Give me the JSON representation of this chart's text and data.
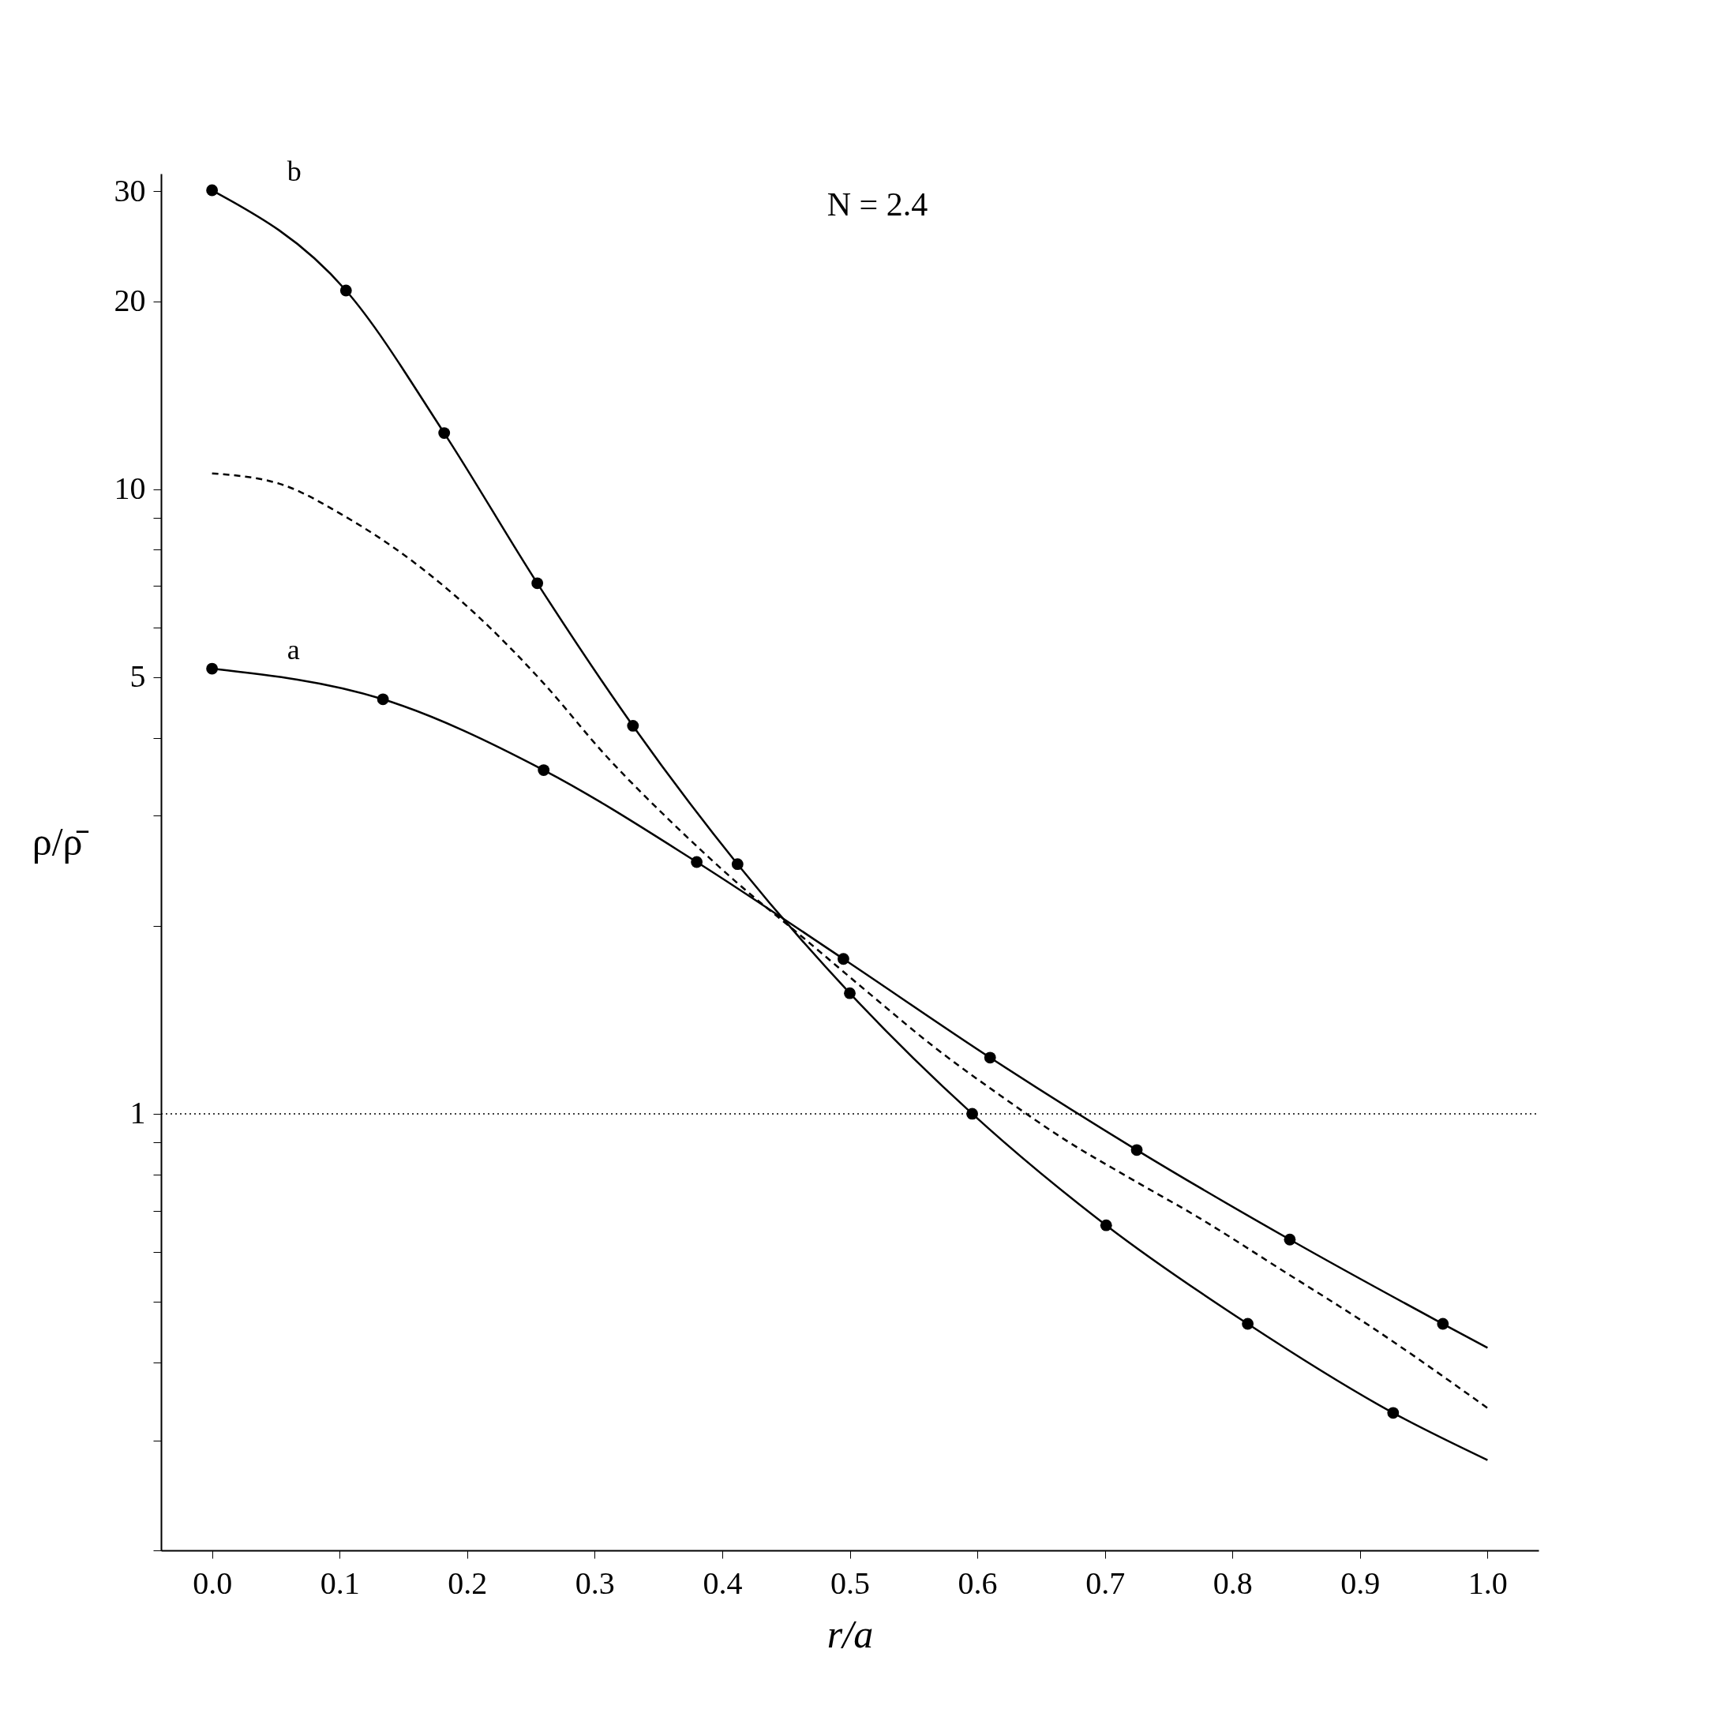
{
  "chart_data": {
    "type": "line",
    "xlabel": "r/a",
    "ylabel": "ρ/ρ̄",
    "log": "y",
    "grid": false,
    "xlim": [
      -0.04,
      1.04
    ],
    "xticks": [
      {
        "value": 0,
        "label": "0.0"
      },
      0.1,
      0.2,
      0.3,
      0.4,
      0.5,
      0.6,
      0.7,
      0.8,
      0.9,
      {
        "value": 1,
        "label": "1.0"
      }
    ],
    "ylim": [
      0.2,
      32
    ],
    "yticks": [
      {
        "value": 0.2,
        "label": null
      },
      {
        "value": 0.3,
        "label": null
      },
      {
        "value": 0.4,
        "label": null
      },
      {
        "value": 0.5,
        "label": null
      },
      {
        "value": 0.6,
        "label": null
      },
      {
        "value": 0.7,
        "label": null
      },
      {
        "value": 0.8,
        "label": null
      },
      {
        "value": 0.9,
        "label": null
      },
      1,
      {
        "value": 2,
        "label": null
      },
      {
        "value": 3,
        "label": null
      },
      {
        "value": 4,
        "label": null
      },
      5,
      {
        "value": 6,
        "label": null
      },
      {
        "value": 7,
        "label": null
      },
      {
        "value": 8,
        "label": null
      },
      {
        "value": 9,
        "label": null
      },
      10,
      20,
      30
    ],
    "series": [
      {
        "name": "a",
        "color": "#000000",
        "line_style": "solid",
        "x": [
          0,
          0.134,
          0.26,
          0.38,
          0.495,
          0.61,
          0.725,
          0.845,
          0.965,
          1.0
        ],
        "values": [
          5.16,
          4.61,
          3.55,
          2.53,
          1.77,
          1.23,
          0.875,
          0.629,
          0.461,
          0.422
        ]
      },
      {
        "type": "scatter",
        "color": "#000000",
        "marker": "circle",
        "x": [
          0,
          0.134,
          0.26,
          0.38,
          0.495,
          0.61,
          0.725,
          0.845,
          0.965
        ],
        "values": [
          5.16,
          4.61,
          3.55,
          2.53,
          1.77,
          1.23,
          0.875,
          0.629,
          0.461
        ]
      },
      {
        "name": "b",
        "color": "#000000",
        "line_style": "solid",
        "x": [
          0,
          0.105,
          0.182,
          0.255,
          0.33,
          0.412,
          0.5,
          0.596,
          0.701,
          0.812,
          0.926,
          1.0
        ],
        "values": [
          30.1,
          20.8,
          12.3,
          7.07,
          4.18,
          2.51,
          1.56,
          1.0,
          0.663,
          0.461,
          0.332,
          0.279
        ]
      },
      {
        "type": "scatter",
        "color": "#000000",
        "marker": "circle",
        "x": [
          0,
          0.105,
          0.182,
          0.255,
          0.33,
          0.412,
          0.5,
          0.596,
          0.701,
          0.812,
          0.926
        ],
        "values": [
          30.1,
          20.8,
          12.3,
          7.07,
          4.18,
          2.51,
          1.56,
          1.0,
          0.663,
          0.461,
          0.332
        ]
      },
      {
        "color": "#000000",
        "line_style": "dashed",
        "x": [
          0,
          0.053,
          0.104,
          0.156,
          0.207,
          0.258,
          0.31,
          0.361,
          0.412,
          0.464,
          0.515,
          0.566,
          0.618,
          0.669,
          0.72,
          0.772,
          0.84,
          0.908,
          1.0
        ],
        "values": [
          10.6,
          10.2,
          9.05,
          7.7,
          6.3,
          4.94,
          3.72,
          2.92,
          2.34,
          1.91,
          1.56,
          1.28,
          1.07,
          0.908,
          0.788,
          0.685,
          0.56,
          0.457,
          0.338
        ]
      }
    ],
    "ref_lines": [
      {
        "axis": "y",
        "value": 1,
        "line_style": "dotted",
        "color": "#000000"
      }
    ],
    "annotations": [
      "N = 2.4"
    ]
  }
}
